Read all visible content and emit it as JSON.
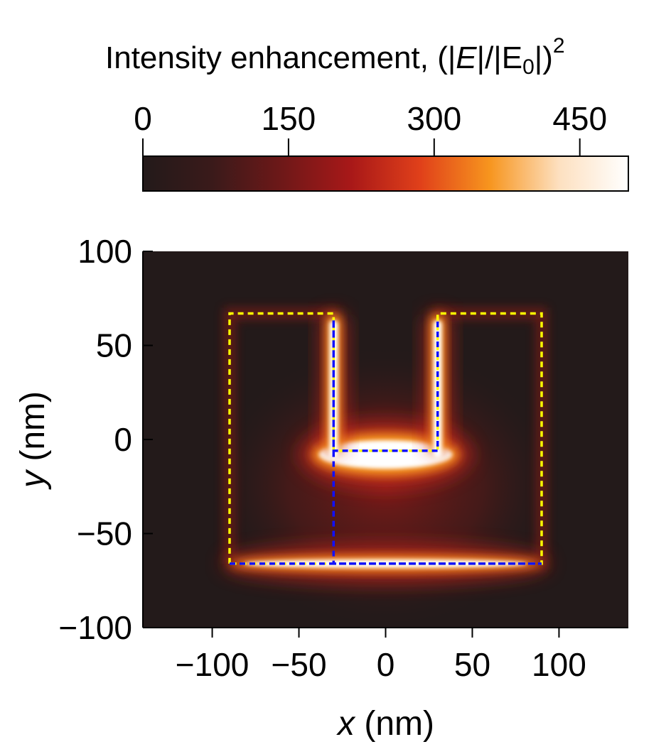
{
  "chart_data": {
    "type": "heatmap",
    "colorbar": {
      "title_text": "Intensity enhancement, ",
      "title_formula": {
        "open_paren_bar": "(|",
        "E": "E",
        "mid": "|/|E",
        "sub": "0",
        "close": "|)",
        "sup": "2"
      },
      "range": [
        0,
        500
      ],
      "ticks": [
        0,
        150,
        300,
        450
      ],
      "tick_labels": [
        "0",
        "150",
        "300",
        "450"
      ],
      "colormap": [
        "#231a1a",
        "#3a1a1a",
        "#6e1818",
        "#a81818",
        "#e0401a",
        "#f7951e",
        "#fde0c0",
        "#ffffff"
      ]
    },
    "x_axis": {
      "label_var": "x",
      "label_unit": " (nm)",
      "range": [
        -140,
        140
      ],
      "ticks": [
        -100,
        -50,
        0,
        50,
        100
      ],
      "tick_labels": [
        "−100",
        "−50",
        "0",
        "50",
        "100"
      ]
    },
    "y_axis": {
      "label_var": "y",
      "label_unit": " (nm)",
      "range": [
        -100,
        100
      ],
      "ticks": [
        -100,
        -50,
        0,
        50,
        100
      ],
      "tick_labels": [
        "−100",
        "−50",
        "0",
        "50",
        "100"
      ]
    },
    "outlines": [
      {
        "name": "outer",
        "color": "#ffff00",
        "points": [
          [
            -90,
            -66
          ],
          [
            -90,
            67
          ],
          [
            -30,
            67
          ],
          [
            -30,
            -6
          ],
          [
            30,
            -6
          ],
          [
            30,
            67
          ],
          [
            90,
            67
          ],
          [
            90,
            -66
          ],
          [
            -90,
            -66
          ]
        ]
      },
      {
        "name": "inner",
        "color": "#1010ff",
        "points": [
          [
            -90,
            -66
          ],
          [
            90,
            -66
          ],
          [
            -30,
            -66
          ],
          [
            -30,
            64
          ],
          [
            -30,
            -6
          ],
          [
            30,
            -6
          ],
          [
            30,
            64
          ]
        ]
      }
    ],
    "hotspots": [
      {
        "region": "bottom-edge",
        "x_range": [
          -90,
          90
        ],
        "y": -66,
        "level": 500
      },
      {
        "region": "u-bottom",
        "x_range": [
          -35,
          35
        ],
        "y": -8,
        "level": 500
      },
      {
        "region": "left-arm",
        "x": -30,
        "y_range": [
          -6,
          67
        ],
        "level": 500
      },
      {
        "region": "right-arm",
        "x": 30,
        "y_range": [
          -6,
          67
        ],
        "level": 500
      }
    ],
    "background_color": "#231a1a",
    "grid": false
  }
}
